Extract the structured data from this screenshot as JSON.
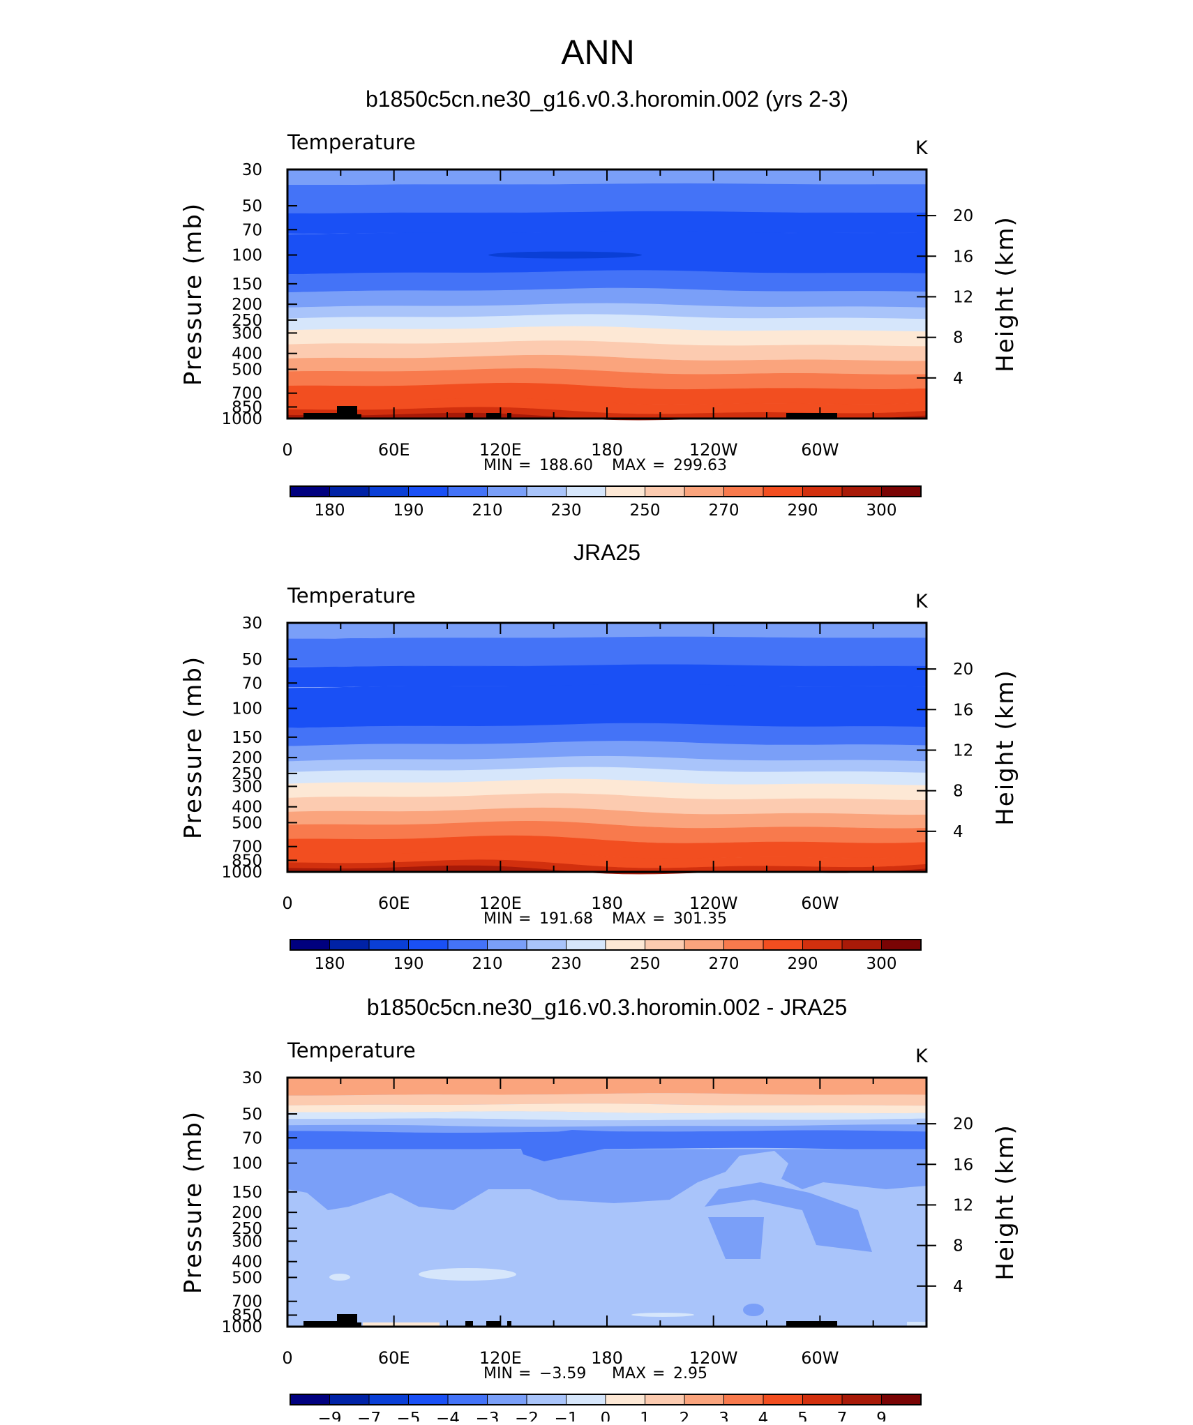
{
  "page_title": "ANN",
  "chart_data": [
    {
      "type": "heatmap",
      "panel_title": "b1850c5cn.ne30_g16.v0.3.horomin.002 (yrs 2-3)",
      "variable": "Temperature",
      "units": "K",
      "xlabel": "",
      "ylabel": "Pressure (mb)",
      "ylabel_right": "Height (km)",
      "x_ticks": [
        "0",
        "60E",
        "120E",
        "180",
        "120W",
        "60W"
      ],
      "pressure_ticks": [
        "30",
        "50",
        "70",
        "100",
        "150",
        "200",
        "250",
        "300",
        "400",
        "500",
        "700",
        "850",
        "1000"
      ],
      "height_ticks": [
        "20",
        "16",
        "12",
        "8",
        "4"
      ],
      "stats": {
        "min_label": "MIN",
        "min": "188.60",
        "max_label": "MAX",
        "max": "299.63"
      },
      "colorbar_labels": [
        "180",
        "190",
        "210",
        "230",
        "250",
        "270",
        "290",
        "300"
      ],
      "levels_k": [
        {
          "p": 30,
          "t": 220
        },
        {
          "p": 50,
          "t": 210
        },
        {
          "p": 70,
          "t": 200
        },
        {
          "p": 100,
          "t": 200
        },
        {
          "p": 150,
          "t": 212
        },
        {
          "p": 200,
          "t": 222
        },
        {
          "p": 250,
          "t": 228
        },
        {
          "p": 300,
          "t": 236
        },
        {
          "p": 400,
          "t": 250
        },
        {
          "p": 500,
          "t": 258
        },
        {
          "p": 700,
          "t": 275
        },
        {
          "p": 850,
          "t": 284
        },
        {
          "p": 1000,
          "t": 294
        }
      ],
      "topography": true
    },
    {
      "type": "heatmap",
      "panel_title": "JRA25",
      "variable": "Temperature",
      "units": "K",
      "xlabel": "",
      "ylabel": "Pressure (mb)",
      "ylabel_right": "Height (km)",
      "x_ticks": [
        "0",
        "60E",
        "120E",
        "180",
        "120W",
        "60W"
      ],
      "pressure_ticks": [
        "30",
        "50",
        "70",
        "100",
        "150",
        "200",
        "250",
        "300",
        "400",
        "500",
        "700",
        "850",
        "1000"
      ],
      "height_ticks": [
        "20",
        "16",
        "12",
        "8",
        "4"
      ],
      "stats": {
        "min_label": "MIN",
        "min": "191.68",
        "max_label": "MAX",
        "max": "301.35"
      },
      "colorbar_labels": [
        "180",
        "190",
        "210",
        "230",
        "250",
        "270",
        "290",
        "300"
      ],
      "topography": false
    },
    {
      "type": "heatmap",
      "panel_title": "b1850c5cn.ne30_g16.v0.3.horomin.002 - JRA25",
      "variable": "Temperature",
      "units": "K",
      "xlabel": "",
      "ylabel": "Pressure (mb)",
      "ylabel_right": "Height (km)",
      "x_ticks": [
        "0",
        "60E",
        "120E",
        "180",
        "120W",
        "60W"
      ],
      "pressure_ticks": [
        "30",
        "50",
        "70",
        "100",
        "150",
        "200",
        "250",
        "300",
        "400",
        "500",
        "700",
        "850",
        "1000"
      ],
      "height_ticks": [
        "20",
        "16",
        "12",
        "8",
        "4"
      ],
      "stats": {
        "min_label": "MIN",
        "min": "−3.59",
        "max_label": "MAX",
        "max": "2.95"
      },
      "colorbar_labels": [
        "−9",
        "−7",
        "−5",
        "−4",
        "−3",
        "−2",
        "−1",
        "0",
        "1",
        "2",
        "3",
        "4",
        "5",
        "7",
        "9"
      ],
      "topography": true
    }
  ],
  "colors": {
    "scale": [
      "#00007f",
      "#0022a6",
      "#0a3fd6",
      "#1a50f5",
      "#4473f7",
      "#7a9ff8",
      "#a9c4fa",
      "#d6e6fb",
      "#fde8d5",
      "#fccbb0",
      "#faa47d",
      "#f87a4d",
      "#f24e20",
      "#d2300e",
      "#a81a08",
      "#7a0404"
    ],
    "topography": "#000000"
  }
}
